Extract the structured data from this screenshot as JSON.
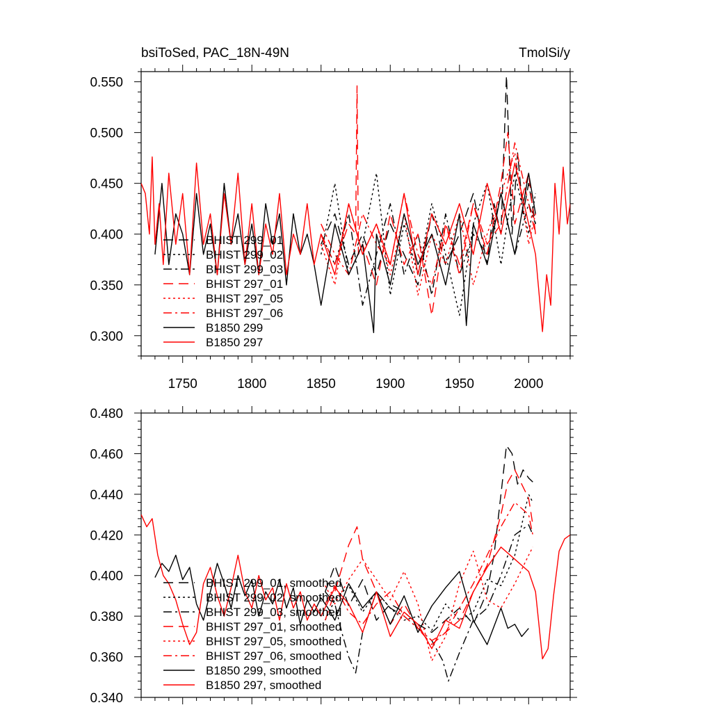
{
  "figure_title_left": "bsiToSed, PAC_18N-49N",
  "figure_title_right": "TmolSi/y",
  "colors": {
    "black": "#000000",
    "red": "#ff0000"
  },
  "chart_data": [
    {
      "type": "line",
      "panel": "top",
      "title": "bsiToSed, PAC_18N-49N",
      "units": "TmolSi/y",
      "xlim": [
        1720,
        2030
      ],
      "ylim": [
        0.28,
        0.56
      ],
      "xticks": [
        1750,
        1800,
        1850,
        1900,
        1950,
        2000
      ],
      "yticks": [
        0.3,
        0.35,
        0.4,
        0.45,
        0.5,
        0.55
      ],
      "ytick_labels": [
        "0.300",
        "0.350",
        "0.400",
        "0.450",
        "0.500",
        "0.550"
      ],
      "legend_position": "lower-left",
      "series": [
        {
          "name": "BHIST 299_01",
          "color": "black",
          "dash": "long",
          "x": [
            1850,
            1860,
            1870,
            1880,
            1890,
            1900,
            1910,
            1920,
            1930,
            1940,
            1950,
            1960,
            1970,
            1975,
            1980,
            1984,
            1988,
            1992,
            1996,
            2000,
            2005
          ],
          "y": [
            0.39,
            0.42,
            0.37,
            0.4,
            0.36,
            0.41,
            0.38,
            0.35,
            0.42,
            0.37,
            0.4,
            0.44,
            0.37,
            0.43,
            0.4,
            0.556,
            0.4,
            0.48,
            0.42,
            0.45,
            0.41
          ]
        },
        {
          "name": "BHIST 299_02",
          "color": "black",
          "dash": "dot",
          "x": [
            1850,
            1860,
            1870,
            1880,
            1890,
            1900,
            1910,
            1920,
            1930,
            1940,
            1950,
            1960,
            1970,
            1980,
            1990,
            2000,
            2005
          ],
          "y": [
            0.38,
            0.45,
            0.36,
            0.39,
            0.46,
            0.34,
            0.41,
            0.36,
            0.43,
            0.38,
            0.32,
            0.41,
            0.45,
            0.37,
            0.46,
            0.4,
            0.44
          ]
        },
        {
          "name": "BHIST 299_03",
          "color": "black",
          "dash": "dashdot",
          "x": [
            1850,
            1860,
            1870,
            1880,
            1890,
            1900,
            1910,
            1920,
            1930,
            1940,
            1950,
            1960,
            1970,
            1980,
            1990,
            2000,
            2005
          ],
          "y": [
            0.4,
            0.37,
            0.42,
            0.33,
            0.38,
            0.43,
            0.36,
            0.4,
            0.34,
            0.42,
            0.36,
            0.4,
            0.38,
            0.44,
            0.38,
            0.43,
            0.41
          ]
        },
        {
          "name": "BHIST 297_01",
          "color": "red",
          "dash": "long",
          "x": [
            1850,
            1860,
            1870,
            1875,
            1876,
            1877,
            1880,
            1890,
            1900,
            1910,
            1920,
            1930,
            1940,
            1950,
            1960,
            1970,
            1980,
            1985,
            1990,
            2000,
            2005
          ],
          "y": [
            0.4,
            0.37,
            0.41,
            0.4,
            0.546,
            0.38,
            0.39,
            0.35,
            0.42,
            0.37,
            0.4,
            0.32,
            0.41,
            0.37,
            0.43,
            0.38,
            0.45,
            0.5,
            0.41,
            0.46,
            0.4
          ]
        },
        {
          "name": "BHIST 297_05",
          "color": "red",
          "dash": "dot",
          "x": [
            1850,
            1860,
            1870,
            1880,
            1890,
            1900,
            1910,
            1920,
            1930,
            1940,
            1950,
            1960,
            1970,
            1980,
            1990,
            2000,
            2005
          ],
          "y": [
            0.39,
            0.35,
            0.43,
            0.38,
            0.41,
            0.36,
            0.42,
            0.34,
            0.4,
            0.37,
            0.42,
            0.35,
            0.4,
            0.44,
            0.48,
            0.39,
            0.42
          ]
        },
        {
          "name": "BHIST 297_06",
          "color": "red",
          "dash": "dashdot",
          "x": [
            1850,
            1860,
            1870,
            1880,
            1890,
            1900,
            1910,
            1920,
            1930,
            1940,
            1950,
            1960,
            1970,
            1980,
            1990,
            2000,
            2005
          ],
          "y": [
            0.41,
            0.38,
            0.36,
            0.42,
            0.39,
            0.37,
            0.44,
            0.38,
            0.35,
            0.41,
            0.36,
            0.43,
            0.39,
            0.41,
            0.49,
            0.43,
            0.4
          ]
        },
        {
          "name": "B1850 299",
          "color": "black",
          "dash": "solid",
          "x": [
            1730,
            1735,
            1740,
            1745,
            1750,
            1755,
            1760,
            1765,
            1770,
            1775,
            1780,
            1785,
            1790,
            1795,
            1800,
            1805,
            1810,
            1815,
            1820,
            1825,
            1830,
            1835,
            1840,
            1845,
            1850,
            1860,
            1870,
            1880,
            1888,
            1890,
            1900,
            1910,
            1920,
            1930,
            1940,
            1950,
            1955,
            1960,
            1970,
            1980,
            1990,
            2000,
            2005
          ],
          "y": [
            0.38,
            0.45,
            0.37,
            0.42,
            0.4,
            0.36,
            0.44,
            0.38,
            0.41,
            0.36,
            0.45,
            0.39,
            0.42,
            0.37,
            0.41,
            0.36,
            0.43,
            0.39,
            0.42,
            0.35,
            0.42,
            0.38,
            0.4,
            0.37,
            0.33,
            0.41,
            0.36,
            0.39,
            0.303,
            0.4,
            0.35,
            0.42,
            0.37,
            0.4,
            0.35,
            0.42,
            0.31,
            0.41,
            0.37,
            0.44,
            0.38,
            0.46,
            0.42
          ]
        },
        {
          "name": "B1850 297",
          "color": "red",
          "dash": "solid",
          "x": [
            1720,
            1723,
            1726,
            1728,
            1730,
            1733,
            1736,
            1740,
            1745,
            1750,
            1755,
            1760,
            1765,
            1770,
            1775,
            1780,
            1785,
            1790,
            1795,
            1800,
            1805,
            1810,
            1815,
            1820,
            1825,
            1830,
            1835,
            1840,
            1845,
            1850,
            1860,
            1870,
            1880,
            1890,
            1900,
            1910,
            1920,
            1930,
            1940,
            1950,
            1960,
            1970,
            1980,
            1990,
            2000,
            2005,
            2010,
            2013,
            2016,
            2019,
            2022,
            2025,
            2028,
            2030
          ],
          "y": [
            0.45,
            0.44,
            0.4,
            0.476,
            0.39,
            0.43,
            0.37,
            0.46,
            0.39,
            0.44,
            0.36,
            0.47,
            0.39,
            0.42,
            0.36,
            0.44,
            0.39,
            0.46,
            0.37,
            0.43,
            0.36,
            0.41,
            0.38,
            0.44,
            0.36,
            0.4,
            0.38,
            0.43,
            0.37,
            0.4,
            0.36,
            0.43,
            0.38,
            0.41,
            0.37,
            0.44,
            0.36,
            0.42,
            0.39,
            0.43,
            0.38,
            0.45,
            0.4,
            0.47,
            0.41,
            0.38,
            0.304,
            0.36,
            0.33,
            0.45,
            0.4,
            0.466,
            0.41,
            0.43
          ]
        }
      ]
    },
    {
      "type": "line",
      "panel": "bottom",
      "title": "",
      "xlim": [
        1720,
        2030
      ],
      "ylim": [
        0.34,
        0.48
      ],
      "xticks": [
        1750,
        1800,
        1850,
        1900,
        1950,
        2000
      ],
      "yticks": [
        0.34,
        0.36,
        0.38,
        0.4,
        0.42,
        0.44,
        0.46,
        0.48
      ],
      "ytick_labels": [
        "0.340",
        "0.360",
        "0.380",
        "0.400",
        "0.420",
        "0.440",
        "0.460",
        "0.480"
      ],
      "legend_position": "lower-left",
      "series": [
        {
          "name": "BHIST 299_01, smoothed",
          "color": "black",
          "dash": "long",
          "x": [
            1853,
            1860,
            1870,
            1880,
            1890,
            1900,
            1910,
            1920,
            1930,
            1940,
            1950,
            1960,
            1970,
            1975,
            1980,
            1984,
            1988,
            1992,
            1996,
            2000,
            2003
          ],
          "y": [
            0.392,
            0.405,
            0.385,
            0.398,
            0.378,
            0.386,
            0.382,
            0.376,
            0.372,
            0.378,
            0.384,
            0.376,
            0.392,
            0.41,
            0.44,
            0.464,
            0.46,
            0.445,
            0.452,
            0.448,
            0.446
          ]
        },
        {
          "name": "BHIST 299_02, smoothed",
          "color": "black",
          "dash": "dot",
          "x": [
            1853,
            1860,
            1870,
            1880,
            1890,
            1900,
            1910,
            1920,
            1930,
            1940,
            1950,
            1960,
            1970,
            1980,
            1990,
            2000,
            2003
          ],
          "y": [
            0.378,
            0.388,
            0.395,
            0.382,
            0.392,
            0.384,
            0.378,
            0.38,
            0.373,
            0.386,
            0.378,
            0.382,
            0.398,
            0.395,
            0.41,
            0.44,
            0.436
          ]
        },
        {
          "name": "BHIST 299_03, smoothed",
          "color": "black",
          "dash": "dashdot",
          "x": [
            1853,
            1860,
            1865,
            1870,
            1875,
            1880,
            1890,
            1900,
            1910,
            1920,
            1930,
            1938,
            1942,
            1950,
            1960,
            1970,
            1980,
            1990,
            2000,
            2003
          ],
          "y": [
            0.392,
            0.386,
            0.372,
            0.36,
            0.352,
            0.372,
            0.392,
            0.384,
            0.38,
            0.374,
            0.368,
            0.358,
            0.348,
            0.362,
            0.378,
            0.384,
            0.4,
            0.42,
            0.425,
            0.42
          ]
        },
        {
          "name": "BHIST 297_01, smoothed",
          "color": "red",
          "dash": "long",
          "x": [
            1853,
            1860,
            1870,
            1876,
            1880,
            1890,
            1900,
            1910,
            1920,
            1930,
            1940,
            1950,
            1960,
            1970,
            1980,
            1985,
            1990,
            1995,
            2000,
            2003
          ],
          "y": [
            0.378,
            0.392,
            0.415,
            0.424,
            0.408,
            0.392,
            0.376,
            0.386,
            0.374,
            0.366,
            0.372,
            0.378,
            0.392,
            0.405,
            0.43,
            0.446,
            0.452,
            0.445,
            0.438,
            0.425
          ]
        },
        {
          "name": "BHIST 297_05, smoothed",
          "color": "red",
          "dash": "dot",
          "x": [
            1853,
            1860,
            1870,
            1880,
            1890,
            1900,
            1910,
            1920,
            1930,
            1940,
            1950,
            1960,
            1970,
            1980,
            1990,
            2000,
            2003
          ],
          "y": [
            0.395,
            0.386,
            0.398,
            0.408,
            0.398,
            0.388,
            0.402,
            0.386,
            0.358,
            0.37,
            0.396,
            0.412,
            0.388,
            0.384,
            0.396,
            0.41,
            0.414
          ]
        },
        {
          "name": "BHIST 297_06, smoothed",
          "color": "red",
          "dash": "dashdot",
          "x": [
            1853,
            1860,
            1870,
            1880,
            1890,
            1900,
            1910,
            1920,
            1930,
            1940,
            1950,
            1960,
            1970,
            1980,
            1990,
            2000,
            2003
          ],
          "y": [
            0.386,
            0.395,
            0.382,
            0.376,
            0.386,
            0.392,
            0.38,
            0.374,
            0.368,
            0.372,
            0.384,
            0.396,
            0.41,
            0.424,
            0.436,
            0.43,
            0.42
          ]
        },
        {
          "name": "B1850 299, smoothed",
          "color": "black",
          "dash": "solid",
          "x": [
            1730,
            1735,
            1740,
            1745,
            1750,
            1755,
            1760,
            1765,
            1770,
            1775,
            1780,
            1785,
            1790,
            1795,
            1800,
            1805,
            1810,
            1815,
            1820,
            1825,
            1830,
            1835,
            1840,
            1845,
            1850,
            1855,
            1860,
            1870,
            1880,
            1890,
            1900,
            1910,
            1920,
            1930,
            1940,
            1950,
            1960,
            1970,
            1980,
            1985,
            1990,
            1995,
            2000
          ],
          "y": [
            0.399,
            0.406,
            0.402,
            0.41,
            0.398,
            0.404,
            0.386,
            0.378,
            0.392,
            0.406,
            0.396,
            0.384,
            0.4,
            0.39,
            0.398,
            0.38,
            0.392,
            0.386,
            0.398,
            0.384,
            0.394,
            0.376,
            0.388,
            0.382,
            0.389,
            0.384,
            0.378,
            0.396,
            0.384,
            0.392,
            0.376,
            0.39,
            0.372,
            0.385,
            0.394,
            0.402,
            0.378,
            0.366,
            0.384,
            0.374,
            0.376,
            0.37,
            0.374
          ]
        },
        {
          "name": "B1850 297, smoothed",
          "color": "red",
          "dash": "solid",
          "x": [
            1720,
            1724,
            1728,
            1732,
            1736,
            1740,
            1745,
            1750,
            1755,
            1760,
            1765,
            1770,
            1775,
            1780,
            1785,
            1790,
            1795,
            1800,
            1805,
            1810,
            1815,
            1820,
            1825,
            1830,
            1835,
            1840,
            1845,
            1850,
            1860,
            1870,
            1880,
            1890,
            1900,
            1910,
            1920,
            1930,
            1940,
            1950,
            1960,
            1970,
            1980,
            1990,
            2000,
            2005,
            2010,
            2014,
            2018,
            2022,
            2026,
            2030
          ],
          "y": [
            0.43,
            0.424,
            0.428,
            0.41,
            0.4,
            0.396,
            0.388,
            0.376,
            0.366,
            0.372,
            0.396,
            0.404,
            0.39,
            0.38,
            0.394,
            0.41,
            0.392,
            0.384,
            0.4,
            0.388,
            0.394,
            0.378,
            0.396,
            0.384,
            0.392,
            0.378,
            0.386,
            0.38,
            0.394,
            0.386,
            0.372,
            0.392,
            0.37,
            0.382,
            0.376,
            0.364,
            0.378,
            0.374,
            0.392,
            0.404,
            0.414,
            0.408,
            0.402,
            0.392,
            0.359,
            0.364,
            0.39,
            0.412,
            0.418,
            0.42
          ]
        }
      ]
    }
  ]
}
